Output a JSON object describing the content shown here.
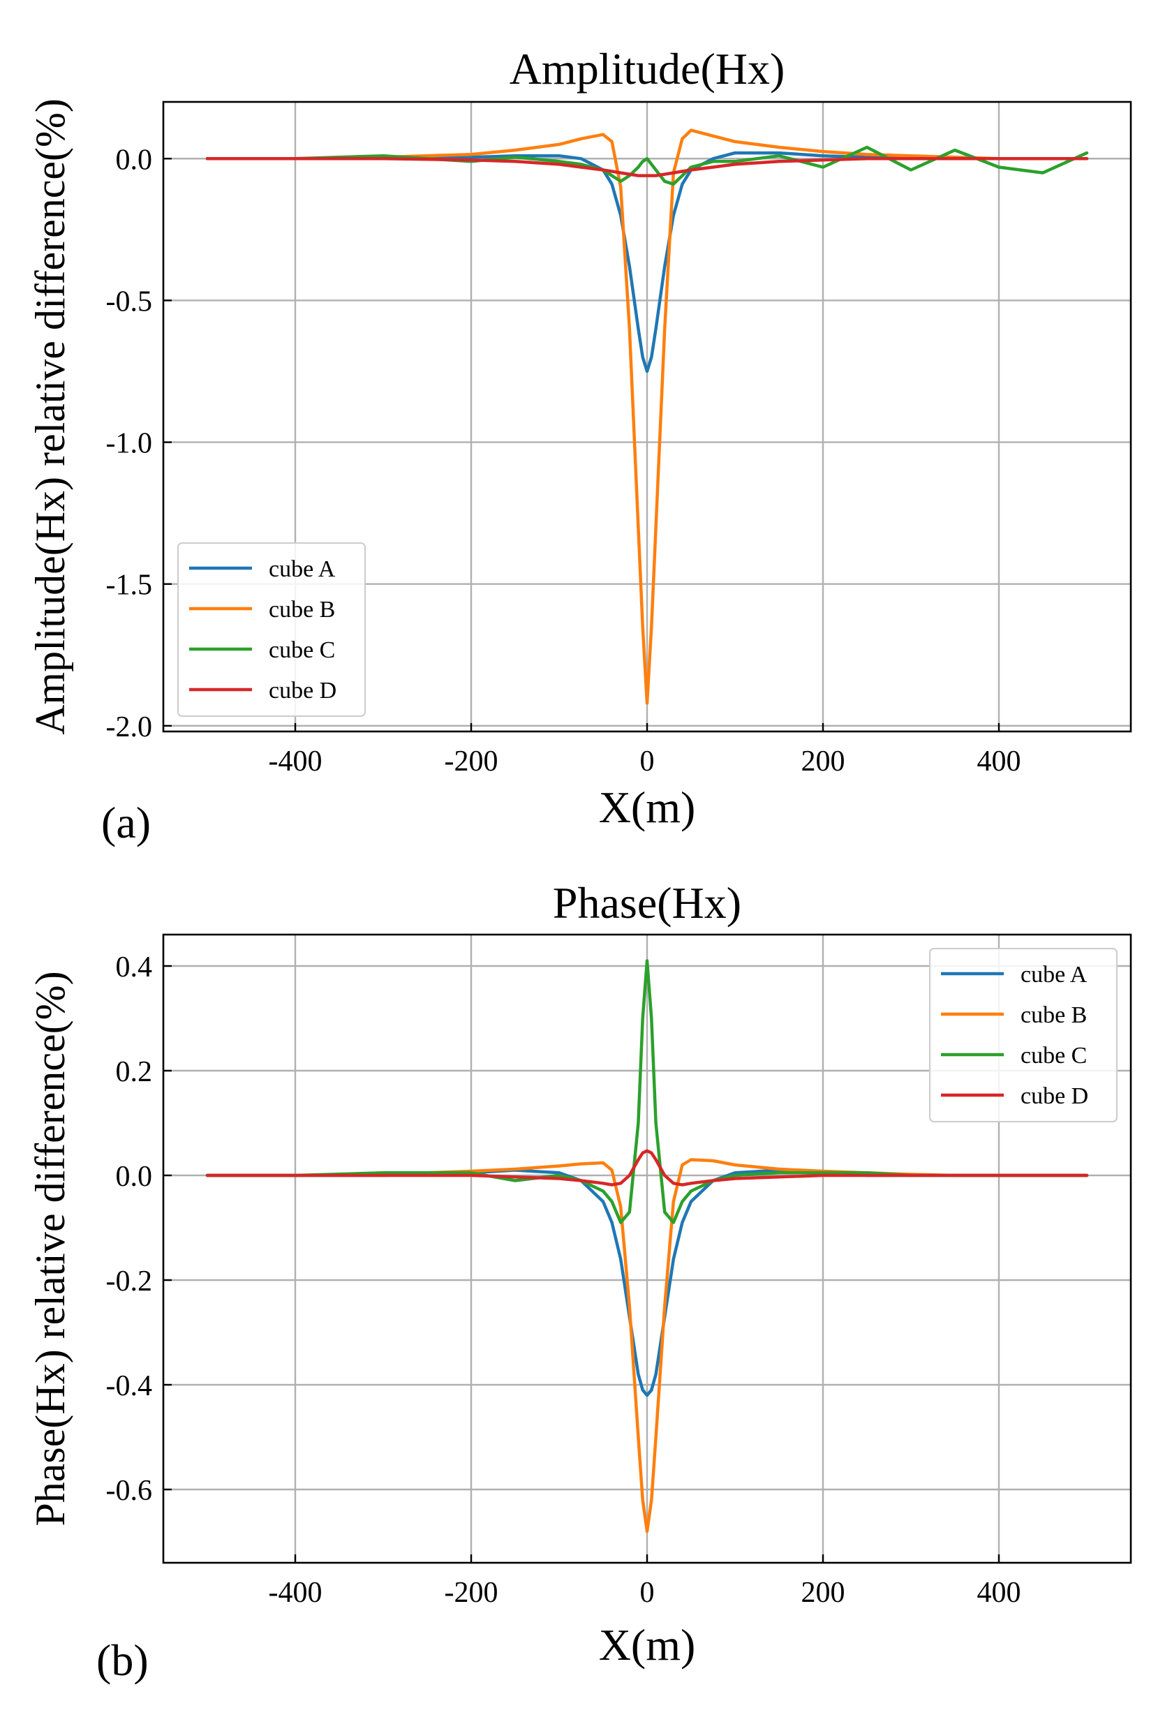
{
  "chart_data": [
    {
      "panel": "(a)",
      "type": "line",
      "title": "Amplitude(Hx)",
      "xlabel": "X(m)",
      "ylabel": "Amplitude(Hx) relative difference(%)",
      "xlim": [
        -550,
        550
      ],
      "ylim": [
        -2.02,
        0.2
      ],
      "xticks": [
        -400,
        -200,
        0,
        200,
        400
      ],
      "xtick_labels": [
        "-400",
        "-200",
        "0",
        "200",
        "400"
      ],
      "yticks": [
        0.0,
        -0.5,
        -1.0,
        -1.5,
        -2.0
      ],
      "ytick_labels": [
        "0.0",
        "-0.5",
        "-1.0",
        "-1.5",
        "-2.0"
      ],
      "grid": true,
      "legend_position": "lower-left",
      "x": [
        -500,
        -400,
        -300,
        -200,
        -150,
        -100,
        -75,
        -50,
        -40,
        -30,
        -20,
        -10,
        -5,
        0,
        5,
        10,
        20,
        30,
        40,
        50,
        75,
        100,
        150,
        200,
        250,
        300,
        350,
        400,
        450,
        500
      ],
      "series": [
        {
          "name": "cube A",
          "color": "#1f77b4",
          "values": [
            0.0,
            0.0,
            0.0,
            0.005,
            0.01,
            0.01,
            0.0,
            -0.04,
            -0.09,
            -0.2,
            -0.38,
            -0.6,
            -0.7,
            -0.75,
            -0.7,
            -0.6,
            -0.38,
            -0.2,
            -0.09,
            -0.04,
            0.0,
            0.02,
            0.02,
            0.01,
            0.005,
            0.0,
            0.0,
            0.0,
            0.0,
            0.0
          ]
        },
        {
          "name": "cube B",
          "color": "#ff7f0e",
          "values": [
            0.0,
            0.0,
            0.005,
            0.015,
            0.03,
            0.05,
            0.07,
            0.085,
            0.06,
            -0.1,
            -0.6,
            -1.3,
            -1.65,
            -1.92,
            -1.65,
            -1.3,
            -0.6,
            -0.05,
            0.07,
            0.1,
            0.08,
            0.06,
            0.04,
            0.025,
            0.015,
            0.01,
            0.005,
            0.0,
            0.0,
            0.0
          ]
        },
        {
          "name": "cube C",
          "color": "#2ca02c",
          "values": [
            0.0,
            0.0,
            0.01,
            -0.01,
            0.005,
            -0.01,
            -0.02,
            -0.04,
            -0.06,
            -0.08,
            -0.06,
            -0.03,
            -0.01,
            0.0,
            -0.02,
            -0.04,
            -0.08,
            -0.09,
            -0.06,
            -0.03,
            -0.01,
            -0.01,
            0.01,
            -0.03,
            0.04,
            -0.04,
            0.03,
            -0.03,
            -0.05,
            0.02
          ]
        },
        {
          "name": "cube D",
          "color": "#d62728",
          "values": [
            0.0,
            0.0,
            0.0,
            -0.005,
            -0.01,
            -0.02,
            -0.03,
            -0.04,
            -0.045,
            -0.05,
            -0.055,
            -0.06,
            -0.06,
            -0.06,
            -0.06,
            -0.06,
            -0.055,
            -0.05,
            -0.045,
            -0.04,
            -0.03,
            -0.02,
            -0.01,
            -0.005,
            0.0,
            0.0,
            0.0,
            0.0,
            0.0,
            0.0
          ]
        }
      ]
    },
    {
      "panel": "(b)",
      "type": "line",
      "title": "Phase(Hx)",
      "xlabel": "X(m)",
      "ylabel": "Phase(Hx) relative difference(%)",
      "xlim": [
        -550,
        550
      ],
      "ylim": [
        -0.74,
        0.46
      ],
      "xticks": [
        -400,
        -200,
        0,
        200,
        400
      ],
      "xtick_labels": [
        "-400",
        "-200",
        "0",
        "200",
        "400"
      ],
      "yticks": [
        0.4,
        0.2,
        0.0,
        -0.2,
        -0.4,
        -0.6
      ],
      "ytick_labels": [
        "0.4",
        "0.2",
        "0.0",
        "-0.2",
        "-0.4",
        "-0.6"
      ],
      "grid": true,
      "legend_position": "top-right",
      "x": [
        -500,
        -400,
        -300,
        -200,
        -150,
        -100,
        -75,
        -50,
        -40,
        -30,
        -20,
        -10,
        -5,
        0,
        5,
        10,
        20,
        30,
        40,
        50,
        75,
        100,
        150,
        200,
        250,
        300,
        350,
        400,
        450,
        500
      ],
      "series": [
        {
          "name": "cube A",
          "color": "#1f77b4",
          "values": [
            0.0,
            0.0,
            0.0,
            0.005,
            0.01,
            0.005,
            -0.01,
            -0.05,
            -0.09,
            -0.16,
            -0.27,
            -0.38,
            -0.41,
            -0.42,
            -0.41,
            -0.38,
            -0.27,
            -0.16,
            -0.09,
            -0.05,
            -0.01,
            0.005,
            0.01,
            0.005,
            0.0,
            0.0,
            0.0,
            0.0,
            0.0,
            0.0
          ]
        },
        {
          "name": "cube B",
          "color": "#ff7f0e",
          "values": [
            0.0,
            0.0,
            0.002,
            0.008,
            0.012,
            0.018,
            0.022,
            0.024,
            0.01,
            -0.06,
            -0.25,
            -0.5,
            -0.62,
            -0.68,
            -0.62,
            -0.5,
            -0.25,
            -0.05,
            0.02,
            0.03,
            0.028,
            0.02,
            0.012,
            0.008,
            0.005,
            0.002,
            0.0,
            0.0,
            0.0,
            0.0
          ]
        },
        {
          "name": "cube C",
          "color": "#2ca02c",
          "values": [
            0.0,
            0.0,
            0.005,
            0.005,
            -0.01,
            0.0,
            -0.01,
            -0.03,
            -0.05,
            -0.09,
            -0.07,
            0.1,
            0.3,
            0.41,
            0.3,
            0.1,
            -0.07,
            -0.09,
            -0.05,
            -0.03,
            -0.01,
            0.0,
            0.005,
            0.005,
            0.005,
            0.0,
            0.0,
            0.0,
            0.0,
            0.0
          ]
        },
        {
          "name": "cube D",
          "color": "#d62728",
          "values": [
            0.0,
            0.0,
            0.0,
            0.0,
            -0.003,
            -0.006,
            -0.01,
            -0.015,
            -0.018,
            -0.015,
            0.0,
            0.03,
            0.043,
            0.047,
            0.043,
            0.03,
            0.0,
            -0.015,
            -0.018,
            -0.015,
            -0.01,
            -0.006,
            -0.003,
            0.0,
            0.0,
            0.0,
            0.0,
            0.0,
            0.0,
            0.0
          ]
        }
      ]
    }
  ]
}
